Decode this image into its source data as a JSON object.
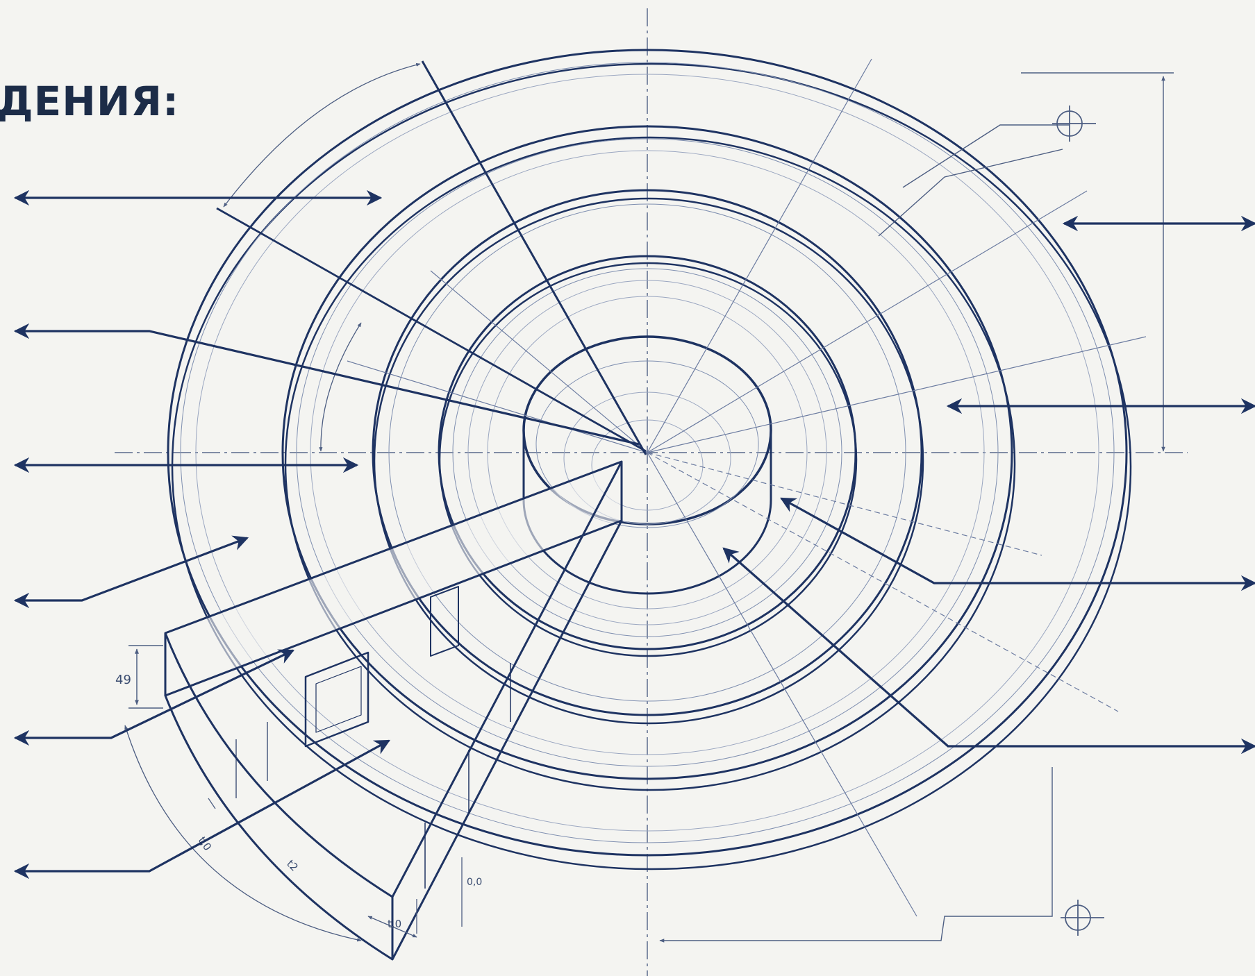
{
  "heading": "ДЕНИЯ:",
  "colors": {
    "background": "#f4f4f1",
    "ink": "#1e3362",
    "light_ink": "#8796b4",
    "text": "#1c2c48"
  },
  "dimensions": {
    "d1": "49",
    "d2": "t,0",
    "d3": "t2",
    "d4": "t,0",
    "d5": "0,0"
  }
}
